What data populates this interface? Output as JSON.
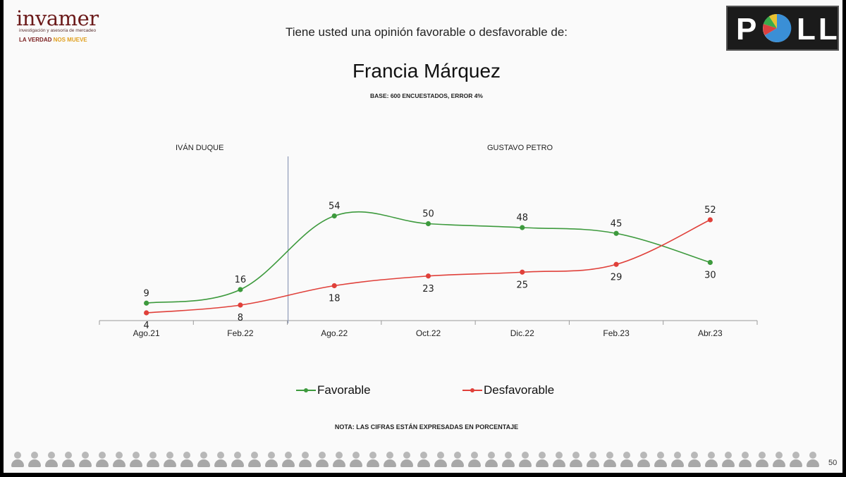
{
  "branding": {
    "logo_name": "invamer",
    "logo_subtitle": "investigación y asesoría de mercadeo",
    "logo_tagline_a": "LA VERDAD",
    "logo_tagline_b": "NOS MUEVE",
    "poll_left": "P",
    "poll_right": "LL",
    "poll_pie_colors": [
      "#3a8fd6",
      "#d94040",
      "#3aaa4a",
      "#e8c030"
    ]
  },
  "header": {
    "question": "Tiene usted una opinión favorable o desfavorable de:",
    "person": "Francia Márquez",
    "base": "BASE: 600 ENCUESTADOS, ERROR 4%"
  },
  "periods": {
    "first": "IVÁN DUQUE",
    "second": "GUSTAVO PETRO"
  },
  "chart_data": {
    "type": "line",
    "categories": [
      "Ago.21",
      "Feb.22",
      "Ago.22",
      "Oct.22",
      "Dic.22",
      "Feb.23",
      "Abr.23"
    ],
    "series": [
      {
        "name": "Favorable",
        "values": [
          9,
          16,
          54,
          50,
          48,
          45,
          30
        ],
        "color": "#3d9a3d"
      },
      {
        "name": "Desfavorable",
        "values": [
          4,
          8,
          18,
          23,
          25,
          29,
          52
        ],
        "color": "#e0403a"
      }
    ],
    "title": "Francia Márquez",
    "xlabel": "",
    "ylabel": "",
    "ylim": [
      0,
      60
    ],
    "grid": false,
    "legend": "bottom",
    "annotations": [
      "IVÁN DUQUE",
      "GUSTAVO PETRO"
    ],
    "divider_between": [
      "Feb.22",
      "Ago.22"
    ]
  },
  "footer": {
    "note": "NOTA: LAS CIFRAS ESTÁN EXPRESADAS EN PORCENTAJE",
    "page_number": "50"
  }
}
